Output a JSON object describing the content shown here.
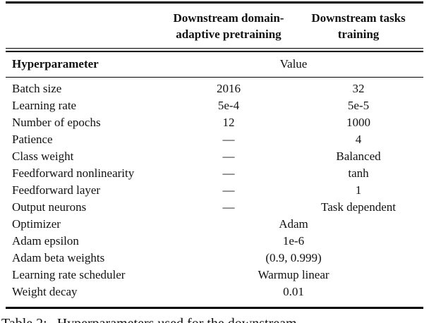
{
  "table": {
    "column_headers": [
      {
        "line1": "Downstream domain-",
        "line2": "adaptive pretraining"
      },
      {
        "line1": "Downstream tasks",
        "line2": "training"
      }
    ],
    "subheader": {
      "hyperparameter": "Hyperparameter",
      "value": "Value"
    },
    "rows": [
      {
        "label": "Batch size",
        "pretraining_value": "2016",
        "tasks_value": "32"
      },
      {
        "label": "Learning rate",
        "pretraining_value": "5e-4",
        "tasks_value": "5e-5"
      },
      {
        "label": "Number of epochs",
        "pretraining_value": "12",
        "tasks_value": "1000"
      },
      {
        "label": "Patience",
        "pretraining_value": "—",
        "tasks_value": "4"
      },
      {
        "label": "Class weight",
        "pretraining_value": "—",
        "tasks_value": "Balanced"
      },
      {
        "label": "Feedforward nonlinearity",
        "pretraining_value": "—",
        "tasks_value": "tanh"
      },
      {
        "label": "Feedforward layer",
        "pretraining_value": "—",
        "tasks_value": "1"
      },
      {
        "label": "Output neurons",
        "pretraining_value": "—",
        "tasks_value": "Task dependent"
      },
      {
        "label": "Optimizer",
        "span_value": "Adam"
      },
      {
        "label": "Adam epsilon",
        "span_value": "1e-6"
      },
      {
        "label": "Adam beta weights",
        "span_value": "(0.9, 0.999)"
      },
      {
        "label": "Learning rate scheduler",
        "span_value": "Warmup linear"
      },
      {
        "label": "Weight decay",
        "span_value": "0.01"
      }
    ]
  },
  "caption": {
    "label": "Table 2:",
    "text": "Hyperparameters used for the downstream"
  },
  "colors": {
    "background": "#ffffff",
    "text": "#111111",
    "rule": "#000000"
  }
}
